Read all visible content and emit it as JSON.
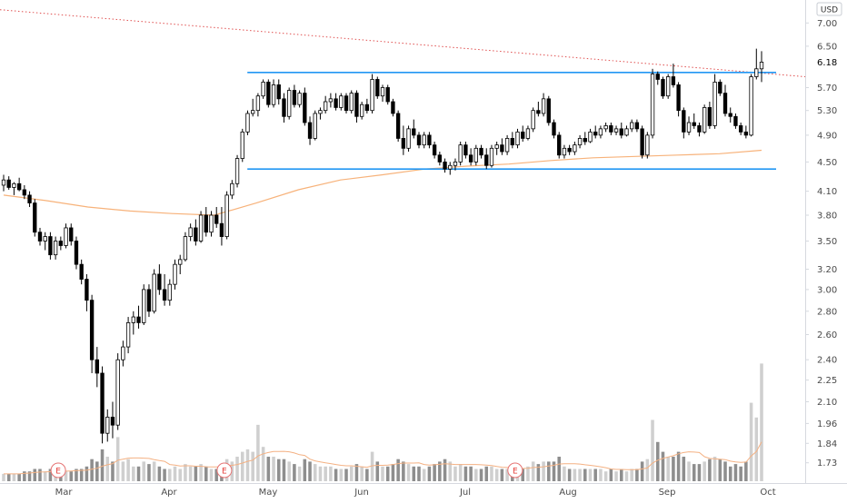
{
  "chart_data": {
    "type": "candlestick",
    "currency": "USD",
    "last_price": "6.18",
    "y_axis": {
      "scale": "log",
      "range": [
        1.66,
        7.4
      ],
      "ticks": [
        "7.00",
        "6.50",
        "5.70",
        "5.30",
        "4.90",
        "4.50",
        "4.10",
        "3.80",
        "3.50",
        "3.20",
        "3.00",
        "2.80",
        "2.60",
        "2.40",
        "2.25",
        "2.10",
        "1.96",
        "1.84",
        "1.73"
      ]
    },
    "x_axis": {
      "ticks": [
        "Mar",
        "Apr",
        "May",
        "Jun",
        "Jul",
        "Aug",
        "Sep",
        "Oct"
      ]
    },
    "earnings_markers": [
      "E",
      "E",
      "E"
    ],
    "levels": {
      "resistance": 5.98,
      "support": 4.4,
      "downtrend_line": [
        7.3,
        5.9
      ],
      "moving_average": [
        4.05,
        3.98,
        3.9,
        3.85,
        3.82,
        3.8,
        3.95,
        4.12,
        4.25,
        4.32,
        4.4,
        4.44,
        4.47,
        4.52,
        4.56,
        4.58,
        4.6,
        4.62,
        4.67
      ]
    },
    "candles": [
      [
        4.18,
        4.32,
        4.1,
        4.25,
        0.3
      ],
      [
        4.25,
        4.3,
        4.12,
        4.15,
        0.3
      ],
      [
        4.15,
        4.22,
        4.05,
        4.2,
        0.3
      ],
      [
        4.2,
        4.28,
        4.1,
        4.12,
        0.3
      ],
      [
        4.12,
        4.18,
        4.0,
        4.05,
        0.4
      ],
      [
        4.05,
        4.1,
        3.9,
        3.95,
        0.4
      ],
      [
        3.95,
        4.0,
        3.55,
        3.6,
        0.5
      ],
      [
        3.6,
        3.65,
        3.45,
        3.5,
        0.5
      ],
      [
        3.5,
        3.6,
        3.4,
        3.55,
        0.4
      ],
      [
        3.55,
        3.6,
        3.3,
        3.35,
        0.5
      ],
      [
        3.35,
        3.55,
        3.3,
        3.5,
        0.4
      ],
      [
        3.5,
        3.55,
        3.4,
        3.45,
        0.3
      ],
      [
        3.45,
        3.7,
        3.42,
        3.65,
        0.4
      ],
      [
        3.65,
        3.7,
        3.45,
        3.5,
        0.4
      ],
      [
        3.5,
        3.55,
        3.2,
        3.25,
        0.5
      ],
      [
        3.25,
        3.3,
        3.05,
        3.1,
        0.5
      ],
      [
        3.1,
        3.15,
        2.8,
        2.9,
        0.6
      ],
      [
        2.9,
        2.95,
        2.3,
        2.4,
        0.9
      ],
      [
        2.4,
        2.5,
        2.2,
        2.3,
        0.8
      ],
      [
        2.3,
        2.35,
        1.84,
        1.9,
        1.3
      ],
      [
        1.9,
        2.05,
        1.85,
        2.0,
        1.0
      ],
      [
        2.0,
        2.1,
        1.87,
        1.95,
        0.8
      ],
      [
        1.95,
        2.45,
        1.92,
        2.4,
        1.8
      ],
      [
        2.4,
        2.55,
        2.35,
        2.5,
        0.8
      ],
      [
        2.5,
        2.75,
        2.45,
        2.7,
        0.9
      ],
      [
        2.7,
        2.8,
        2.6,
        2.75,
        0.6
      ],
      [
        2.75,
        2.85,
        2.65,
        2.7,
        0.6
      ],
      [
        2.7,
        3.05,
        2.68,
        3.0,
        0.8
      ],
      [
        3.0,
        3.05,
        2.75,
        2.8,
        0.7
      ],
      [
        2.8,
        3.2,
        2.78,
        3.15,
        0.8
      ],
      [
        3.15,
        3.25,
        2.95,
        3.0,
        0.6
      ],
      [
        3.0,
        3.15,
        2.85,
        2.9,
        0.5
      ],
      [
        2.9,
        3.1,
        2.85,
        3.05,
        0.5
      ],
      [
        3.05,
        3.3,
        3.0,
        3.25,
        0.6
      ],
      [
        3.25,
        3.35,
        3.15,
        3.3,
        0.5
      ],
      [
        3.3,
        3.6,
        3.28,
        3.55,
        0.7
      ],
      [
        3.55,
        3.7,
        3.5,
        3.65,
        0.6
      ],
      [
        3.65,
        3.75,
        3.45,
        3.5,
        0.6
      ],
      [
        3.5,
        3.85,
        3.48,
        3.8,
        0.7
      ],
      [
        3.8,
        3.9,
        3.55,
        3.6,
        0.6
      ],
      [
        3.6,
        3.85,
        3.55,
        3.8,
        0.5
      ],
      [
        3.8,
        3.9,
        3.65,
        3.7,
        0.5
      ],
      [
        3.7,
        3.9,
        3.45,
        3.55,
        0.6
      ],
      [
        3.55,
        4.1,
        3.52,
        4.05,
        0.9
      ],
      [
        4.05,
        4.25,
        4.0,
        4.2,
        0.8
      ],
      [
        4.2,
        4.6,
        4.15,
        4.55,
        1.0
      ],
      [
        4.55,
        5.0,
        4.5,
        4.95,
        1.2
      ],
      [
        4.95,
        5.3,
        4.9,
        5.25,
        1.3
      ],
      [
        5.25,
        5.5,
        5.2,
        5.3,
        1.2
      ],
      [
        5.3,
        5.6,
        5.2,
        5.55,
        2.3
      ],
      [
        5.55,
        5.85,
        5.5,
        5.8,
        1.4
      ],
      [
        5.8,
        5.85,
        5.35,
        5.4,
        1.0
      ],
      [
        5.4,
        5.85,
        5.35,
        5.75,
        1.0
      ],
      [
        5.75,
        5.85,
        5.4,
        5.5,
        0.9
      ],
      [
        5.5,
        5.6,
        5.1,
        5.2,
        0.9
      ],
      [
        5.2,
        5.7,
        5.15,
        5.65,
        0.8
      ],
      [
        5.65,
        5.75,
        5.35,
        5.4,
        0.7
      ],
      [
        5.4,
        5.65,
        5.35,
        5.6,
        0.6
      ],
      [
        5.6,
        5.7,
        5.05,
        5.1,
        0.9
      ],
      [
        5.1,
        5.2,
        4.75,
        4.85,
        0.8
      ],
      [
        4.85,
        5.3,
        4.82,
        5.25,
        0.7
      ],
      [
        5.25,
        5.35,
        5.15,
        5.3,
        0.6
      ],
      [
        5.3,
        5.55,
        5.25,
        5.45,
        0.6
      ],
      [
        5.45,
        5.6,
        5.35,
        5.5,
        0.6
      ],
      [
        5.5,
        5.6,
        5.3,
        5.35,
        0.5
      ],
      [
        5.35,
        5.6,
        5.3,
        5.55,
        0.5
      ],
      [
        5.55,
        5.6,
        5.25,
        5.3,
        0.5
      ],
      [
        5.3,
        5.65,
        5.25,
        5.6,
        0.6
      ],
      [
        5.6,
        5.65,
        5.1,
        5.2,
        0.7
      ],
      [
        5.2,
        5.45,
        5.15,
        5.4,
        0.6
      ],
      [
        5.4,
        5.5,
        5.25,
        5.3,
        0.5
      ],
      [
        5.3,
        5.95,
        5.25,
        5.85,
        1.2
      ],
      [
        5.85,
        5.9,
        5.5,
        5.55,
        0.8
      ],
      [
        5.55,
        5.75,
        5.45,
        5.7,
        0.6
      ],
      [
        5.7,
        5.75,
        5.4,
        5.45,
        0.6
      ],
      [
        5.45,
        5.5,
        5.2,
        5.25,
        0.7
      ],
      [
        5.25,
        5.3,
        4.8,
        4.85,
        0.9
      ],
      [
        4.85,
        5.05,
        4.6,
        4.7,
        0.8
      ],
      [
        4.7,
        5.05,
        4.65,
        5.0,
        0.7
      ],
      [
        5.0,
        5.15,
        4.85,
        4.9,
        0.6
      ],
      [
        4.9,
        4.95,
        4.7,
        4.75,
        0.6
      ],
      [
        4.75,
        4.95,
        4.7,
        4.9,
        0.5
      ],
      [
        4.9,
        4.95,
        4.7,
        4.75,
        0.6
      ],
      [
        4.75,
        4.8,
        4.55,
        4.6,
        0.7
      ],
      [
        4.6,
        4.65,
        4.45,
        4.5,
        0.8
      ],
      [
        4.5,
        4.55,
        4.35,
        4.4,
        0.9
      ],
      [
        4.4,
        4.5,
        4.32,
        4.45,
        0.8
      ],
      [
        4.45,
        4.55,
        4.38,
        4.5,
        0.6
      ],
      [
        4.5,
        4.8,
        4.45,
        4.75,
        0.7
      ],
      [
        4.75,
        4.8,
        4.55,
        4.6,
        0.6
      ],
      [
        4.6,
        4.7,
        4.45,
        4.5,
        0.6
      ],
      [
        4.5,
        4.75,
        4.45,
        4.7,
        0.5
      ],
      [
        4.7,
        4.75,
        4.55,
        4.6,
        0.5
      ],
      [
        4.6,
        4.7,
        4.4,
        4.45,
        0.6
      ],
      [
        4.45,
        4.75,
        4.42,
        4.7,
        0.6
      ],
      [
        4.7,
        4.8,
        4.6,
        4.75,
        0.5
      ],
      [
        4.75,
        4.85,
        4.6,
        4.65,
        0.5
      ],
      [
        4.65,
        4.9,
        4.6,
        4.85,
        0.5
      ],
      [
        4.85,
        4.95,
        4.7,
        4.75,
        0.5
      ],
      [
        4.75,
        5.0,
        4.7,
        4.95,
        0.5
      ],
      [
        4.95,
        5.05,
        4.8,
        4.85,
        0.5
      ],
      [
        4.85,
        5.05,
        4.82,
        5.0,
        0.6
      ],
      [
        5.0,
        5.35,
        4.95,
        5.3,
        0.8
      ],
      [
        5.3,
        5.45,
        5.2,
        5.25,
        0.7
      ],
      [
        5.25,
        5.6,
        5.2,
        5.5,
        0.8
      ],
      [
        5.5,
        5.55,
        5.05,
        5.1,
        0.8
      ],
      [
        5.1,
        5.15,
        4.85,
        4.9,
        0.8
      ],
      [
        4.9,
        4.95,
        4.55,
        4.6,
        1.0
      ],
      [
        4.6,
        4.75,
        4.55,
        4.7,
        0.6
      ],
      [
        4.7,
        4.75,
        4.6,
        4.65,
        0.5
      ],
      [
        4.65,
        4.8,
        4.6,
        4.75,
        0.5
      ],
      [
        4.75,
        4.9,
        4.7,
        4.85,
        0.5
      ],
      [
        4.85,
        4.95,
        4.75,
        4.8,
        0.5
      ],
      [
        4.8,
        5.0,
        4.78,
        4.95,
        0.5
      ],
      [
        4.95,
        5.05,
        4.85,
        4.9,
        0.5
      ],
      [
        4.9,
        5.05,
        4.85,
        5.0,
        0.5
      ],
      [
        5.0,
        5.1,
        4.95,
        5.05,
        0.4
      ],
      [
        5.05,
        5.1,
        4.9,
        4.95,
        0.5
      ],
      [
        4.95,
        5.05,
        4.9,
        5.0,
        0.4
      ],
      [
        5.0,
        5.1,
        4.85,
        4.9,
        0.5
      ],
      [
        4.9,
        5.05,
        4.88,
        5.0,
        0.4
      ],
      [
        5.0,
        5.15,
        4.95,
        5.1,
        0.5
      ],
      [
        5.1,
        5.15,
        4.95,
        5.0,
        0.5
      ],
      [
        5.0,
        5.05,
        4.55,
        4.6,
        0.8
      ],
      [
        4.6,
        4.95,
        4.55,
        4.9,
        0.9
      ],
      [
        4.9,
        6.05,
        4.85,
        5.95,
        2.5
      ],
      [
        5.95,
        6.0,
        5.75,
        5.85,
        1.6
      ],
      [
        5.85,
        5.9,
        5.5,
        5.55,
        1.2
      ],
      [
        5.55,
        5.95,
        5.5,
        5.9,
        1.0
      ],
      [
        5.9,
        6.15,
        5.7,
        5.75,
        1.0
      ],
      [
        5.75,
        5.8,
        5.2,
        5.3,
        1.2
      ],
      [
        5.3,
        5.35,
        4.85,
        4.95,
        1.0
      ],
      [
        4.95,
        5.2,
        4.9,
        5.1,
        0.8
      ],
      [
        5.1,
        5.25,
        5.0,
        5.05,
        0.7
      ],
      [
        5.05,
        5.1,
        4.88,
        4.95,
        0.7
      ],
      [
        4.95,
        5.4,
        4.92,
        5.35,
        0.8
      ],
      [
        5.35,
        5.45,
        5.0,
        5.05,
        0.9
      ],
      [
        5.05,
        5.95,
        5.0,
        5.8,
        1.0
      ],
      [
        5.8,
        5.85,
        5.55,
        5.6,
        0.9
      ],
      [
        5.6,
        5.75,
        5.2,
        5.25,
        0.8
      ],
      [
        5.25,
        5.35,
        5.1,
        5.2,
        0.6
      ],
      [
        5.2,
        5.25,
        5.0,
        5.05,
        0.7
      ],
      [
        5.05,
        5.1,
        4.9,
        4.95,
        0.6
      ],
      [
        4.95,
        5.05,
        4.85,
        4.9,
        0.8
      ],
      [
        4.9,
        5.95,
        4.88,
        5.9,
        3.2
      ],
      [
        5.9,
        6.45,
        5.85,
        6.05,
        2.6
      ],
      [
        6.05,
        6.4,
        5.8,
        6.18,
        4.8
      ]
    ]
  }
}
